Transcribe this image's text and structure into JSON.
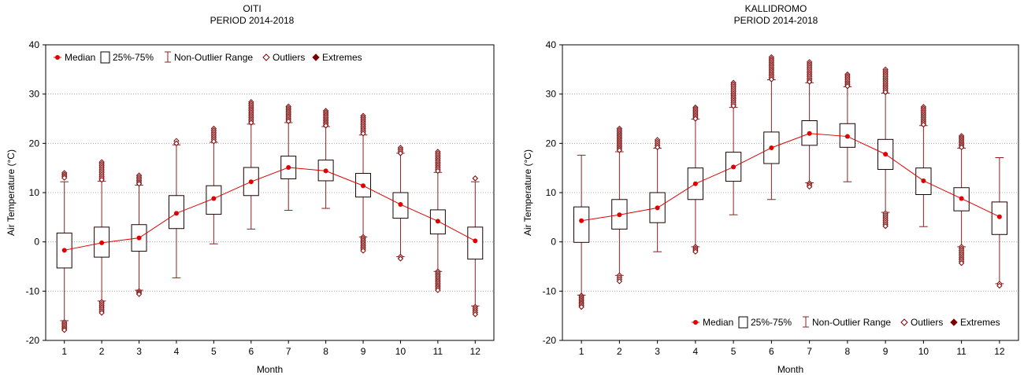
{
  "chart_data": [
    {
      "type": "box",
      "title": "OITI",
      "subtitle": "PERIOD 2014-2018",
      "xlabel": "Month",
      "ylabel": "Air Temperature (°C)",
      "ylim": [
        -20,
        40
      ],
      "yticks": [
        -20,
        -10,
        0,
        10,
        20,
        30,
        40
      ],
      "categories": [
        "1",
        "2",
        "3",
        "4",
        "5",
        "6",
        "7",
        "8",
        "9",
        "10",
        "11",
        "12"
      ],
      "grid": true,
      "legend_position": "top-left",
      "legend": [
        "Median",
        "25%-75%",
        "Non-Outlier Range",
        "Outliers",
        "Extremes"
      ],
      "median": [
        -1.7,
        -0.2,
        0.8,
        5.8,
        8.8,
        12.2,
        15.1,
        14.4,
        11.4,
        7.6,
        4.2,
        0.2
      ],
      "q1": [
        -5.3,
        -3.1,
        -1.9,
        2.7,
        5.6,
        9.4,
        12.8,
        12.4,
        9.1,
        4.8,
        1.6,
        -3.5
      ],
      "q3": [
        1.8,
        3.0,
        3.5,
        9.4,
        11.4,
        15.1,
        17.4,
        16.6,
        13.9,
        10.0,
        6.5,
        3.0
      ],
      "whisker_low": [
        -16.0,
        -12.0,
        -9.8,
        -7.3,
        -0.4,
        2.6,
        6.4,
        6.8,
        1.0,
        -3.0,
        -6.0,
        -13.0
      ],
      "whisker_high": [
        12.2,
        12.3,
        11.5,
        19.7,
        20.2,
        23.9,
        24.2,
        23.4,
        21.7,
        18.0,
        14.1,
        12.2
      ],
      "outliers_high": [
        [
          13.0,
          14.0
        ],
        [
          12.6,
          16.2
        ],
        [
          11.8,
          13.5
        ],
        [
          20.0,
          20.5
        ],
        [
          20.4,
          23.0
        ],
        [
          24.2,
          28.4
        ],
        [
          24.5,
          27.5
        ],
        [
          23.6,
          26.6
        ],
        [
          22.0,
          25.6
        ],
        [
          18.0,
          19.1
        ],
        [
          14.4,
          18.3
        ],
        [
          12.9,
          12.9
        ]
      ],
      "outliers_low": [
        [
          -16.3,
          -17.9
        ],
        [
          -12.2,
          -14.4
        ],
        [
          -10.0,
          -10.6
        ],
        null,
        null,
        null,
        null,
        null,
        [
          1.0,
          -1.8
        ],
        [
          -3.0,
          -3.4
        ],
        [
          -6.0,
          -9.8
        ],
        [
          -13.2,
          -14.7
        ]
      ]
    },
    {
      "type": "box",
      "title": "KALLIDROMO",
      "subtitle": "PERIOD 2014-2018",
      "xlabel": "Month",
      "ylabel": "Air Temperature (°C)",
      "ylim": [
        -20,
        40
      ],
      "yticks": [
        -20,
        -10,
        0,
        10,
        20,
        30,
        40
      ],
      "categories": [
        "1",
        "2",
        "3",
        "4",
        "5",
        "6",
        "7",
        "8",
        "9",
        "10",
        "11",
        "12"
      ],
      "grid": true,
      "legend_position": "bottom-right",
      "legend": [
        "Median",
        "25%-75%",
        "Non-Outlier Range",
        "Outliers",
        "Extremes"
      ],
      "median": [
        4.3,
        5.5,
        6.9,
        11.8,
        15.2,
        19.1,
        22.0,
        21.4,
        17.8,
        12.4,
        8.8,
        5.1
      ],
      "q1": [
        -0.1,
        2.6,
        3.9,
        8.6,
        12.3,
        15.9,
        19.6,
        19.2,
        14.7,
        9.6,
        6.3,
        1.5
      ],
      "q3": [
        7.1,
        8.6,
        10.0,
        15.0,
        18.2,
        22.3,
        24.6,
        24.0,
        20.8,
        15.0,
        11.0,
        8.1
      ],
      "whisker_low": [
        -10.8,
        -6.8,
        -2.0,
        -1.0,
        5.5,
        8.6,
        12.0,
        12.2,
        6.0,
        3.1,
        -1.0,
        -8.5
      ],
      "whisker_high": [
        17.6,
        18.3,
        19.0,
        24.9,
        27.3,
        32.9,
        32.3,
        31.5,
        30.2,
        23.6,
        19.0,
        17.1
      ],
      "outliers_high": [
        null,
        [
          18.6,
          23.0
        ],
        [
          19.2,
          20.7
        ],
        [
          25.0,
          27.3
        ],
        [
          27.6,
          32.3
        ],
        [
          33.0,
          37.5
        ],
        [
          32.5,
          36.5
        ],
        [
          31.6,
          34.0
        ],
        [
          30.4,
          35.0
        ],
        [
          23.8,
          27.4
        ],
        [
          19.2,
          21.5
        ],
        null
      ],
      "outliers_low": [
        [
          -10.9,
          -13.2
        ],
        [
          -6.8,
          -8.0
        ],
        null,
        [
          -1.0,
          -2.0
        ],
        null,
        null,
        [
          11.9,
          11.2
        ],
        null,
        [
          5.8,
          3.2
        ],
        null,
        [
          -1.0,
          -4.3
        ],
        [
          -8.5,
          -8.9
        ]
      ]
    }
  ]
}
